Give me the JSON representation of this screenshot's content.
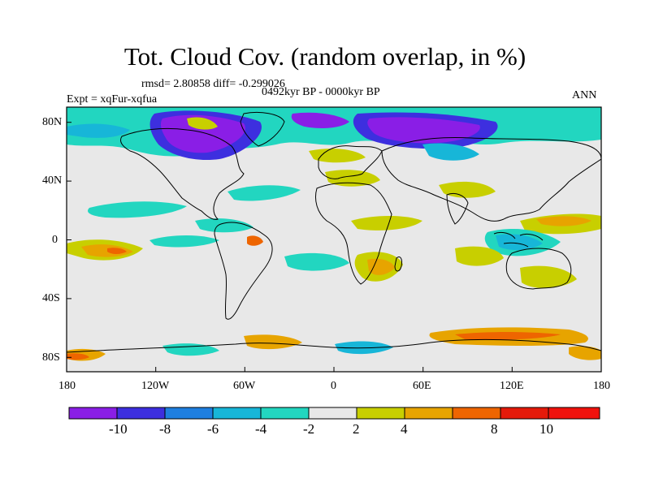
{
  "title": "Tot. Cloud Cov. (random overlap, in %)",
  "stats": "rmsd= 2.80858 diff= -0.299026",
  "period": "0492kyr BP - 0000kyr BP",
  "experiment": "Expt = xqFur-xqfua",
  "season": "ANN",
  "axes": {
    "x_ticks": [
      "180",
      "120W",
      "60W",
      "0",
      "60E",
      "120E",
      "180"
    ],
    "y_ticks": [
      "80N",
      "40N",
      "0",
      "40S",
      "80S"
    ]
  },
  "colorbar": {
    "labels": [
      "-10",
      "-8",
      "-6",
      "-4",
      "-2",
      "2",
      "4",
      "8",
      "10"
    ],
    "colors": [
      "#8a1ee6",
      "#3d2fdf",
      "#1e7fe0",
      "#17b6d8",
      "#22d6c0",
      "#e8e8e8",
      "#c8cf00",
      "#e7a400",
      "#ee6500",
      "#e41a0a",
      "#f0120d"
    ]
  },
  "colors": {
    "land_outline": "#000000",
    "background_field": "#e8e8e8"
  }
}
